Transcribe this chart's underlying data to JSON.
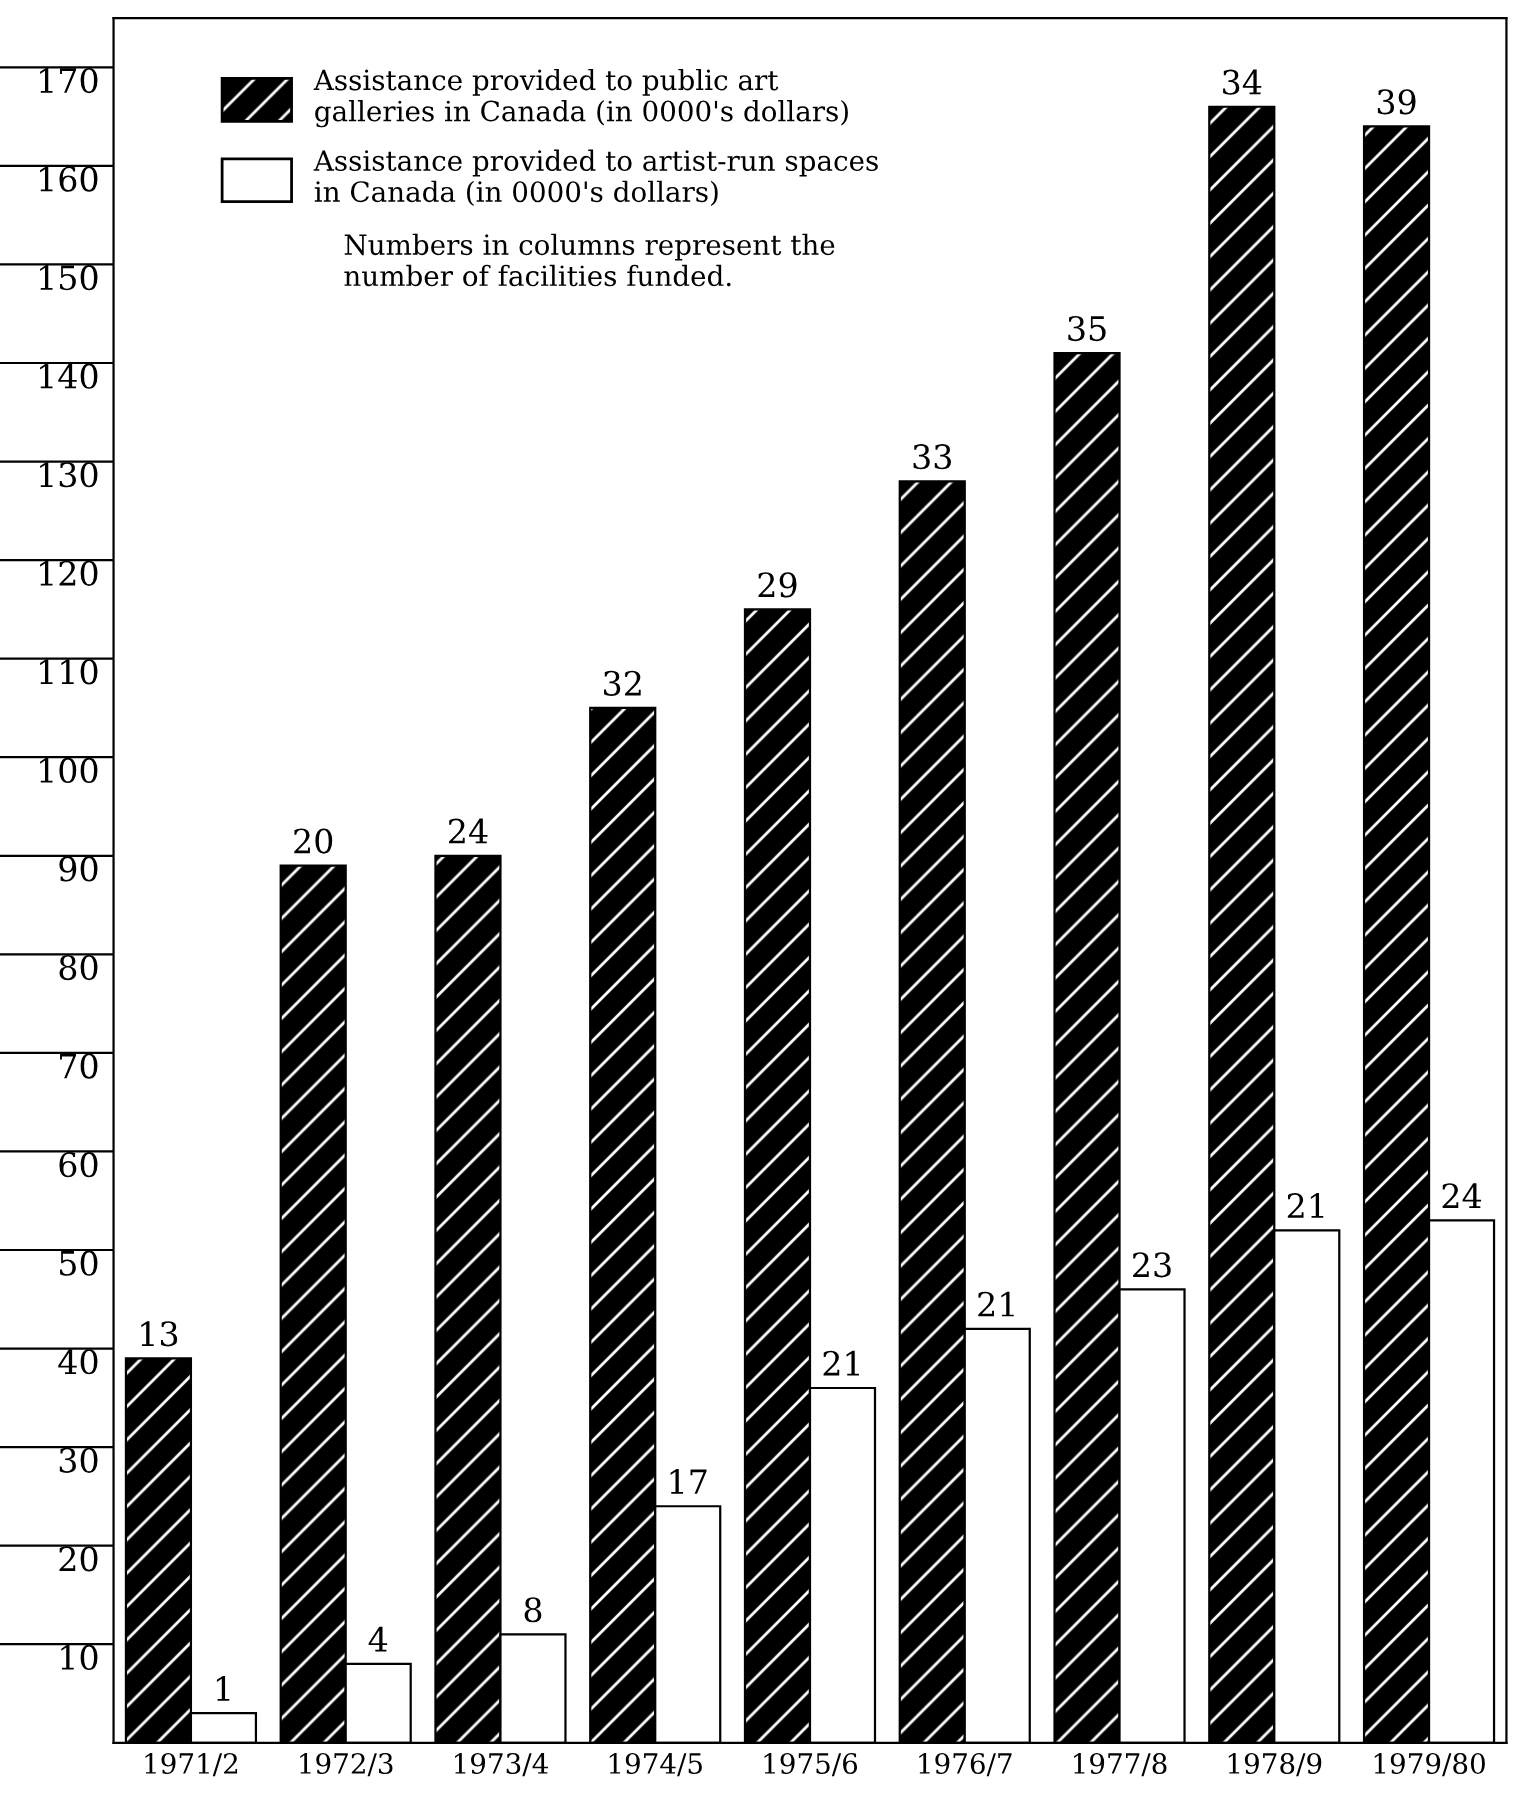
{
  "chart_data": {
    "type": "bar",
    "categories": [
      "1971/2",
      "1972/3",
      "1973/4",
      "1974/5",
      "1975/6",
      "1976/7",
      "1977/8",
      "1978/9",
      "1979/80"
    ],
    "series": [
      {
        "name": "Assistance provided to public art\ngalleries in Canada (in 0000's dollars)",
        "color": "#000000",
        "values": [
          39,
          89,
          90,
          105,
          115,
          128,
          141,
          166,
          164
        ]
      },
      {
        "name": "Assistance provided to artist-run spaces\nin Canada (in 0000's dollars)",
        "color": "#ffffff",
        "values": [
          3,
          8,
          11,
          24,
          36,
          42,
          46,
          52,
          53
        ]
      }
    ],
    "ylim": [
      0,
      175
    ],
    "yticks": [
      10,
      20,
      30,
      40,
      50,
      60,
      70,
      80,
      90,
      100,
      110,
      120,
      130,
      140,
      150,
      160,
      170
    ],
    "grid": false,
    "legend": "top left",
    "annotations": [
      "Numbers in columns represent the\nnumber of facilities funded.",
      {
        "text": "13",
        "x": "1971/2",
        "y": 39
      },
      {
        "text": "20",
        "x": "1972/3",
        "y": 89
      },
      {
        "text": "24",
        "x": "1973/4",
        "y": 90
      },
      {
        "text": "32",
        "x": "1974/5",
        "y": 105
      },
      {
        "text": "29",
        "x": "1975/6",
        "y": 115
      },
      {
        "text": "33",
        "x": "1976/7",
        "y": 128
      },
      {
        "text": "35",
        "x": "1977/8",
        "y": 141
      },
      {
        "text": "34",
        "x": "1978/9",
        "y": 166
      },
      {
        "text": "39",
        "x": "1979/80",
        "y": 164
      },
      {
        "text": "1",
        "x": "1971/2",
        "y": 3
      },
      {
        "text": "4",
        "x": "1972/3",
        "y": 8
      },
      {
        "text": "8",
        "x": "1973/4",
        "y": 11
      },
      {
        "text": "17",
        "x": "1974/5",
        "y": 24
      },
      {
        "text": "21",
        "x": "1975/6",
        "y": 36
      },
      {
        "text": "21",
        "x": "1976/7",
        "y": 42
      },
      {
        "text": "23",
        "x": "1977/8",
        "y": 46
      },
      {
        "text": "21",
        "x": "1978/9",
        "y": 52
      },
      {
        "text": "24",
        "x": "1979/80",
        "y": 53
      }
    ]
  }
}
